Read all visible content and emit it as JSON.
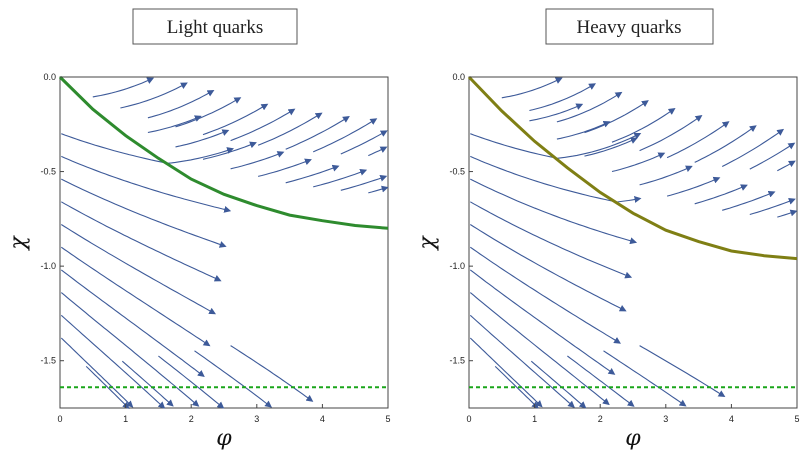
{
  "colors": {
    "stream": "#3d5a99",
    "light_curve": "#2e8b2e",
    "heavy_curve": "#7f7f14",
    "dashed": "#1aa51a"
  },
  "chart_data": [
    {
      "type": "streamplot",
      "title": "Light quarks",
      "xlabel": "φ",
      "ylabel": "χ",
      "xlim": [
        0,
        5
      ],
      "ylim": [
        -1.75,
        0
      ],
      "xticks": [
        "0",
        "1",
        "2",
        "3",
        "4",
        "5"
      ],
      "yticks": [
        "0.0",
        "-0.5",
        "-1.0",
        "-1.5"
      ],
      "dashed_line_y": -1.64,
      "curve": {
        "x": [
          0,
          0.5,
          1,
          1.5,
          2,
          2.5,
          3,
          3.5,
          4,
          4.5,
          5
        ],
        "y": [
          0,
          -0.17,
          -0.31,
          -0.43,
          -0.54,
          -0.62,
          -0.68,
          -0.73,
          -0.76,
          -0.785,
          -0.8
        ]
      }
    },
    {
      "type": "streamplot",
      "title": "Heavy quarks",
      "xlabel": "φ",
      "ylabel": "χ",
      "xlim": [
        0,
        5
      ],
      "ylim": [
        -1.75,
        0
      ],
      "xticks": [
        "0",
        "1",
        "2",
        "3",
        "4",
        "5"
      ],
      "yticks": [
        "0.0",
        "-0.5",
        "-1.0",
        "-1.5"
      ],
      "dashed_line_y": -1.64,
      "curve": {
        "x": [
          0,
          0.5,
          1,
          1.5,
          2,
          2.5,
          3,
          3.5,
          4,
          4.5,
          5
        ],
        "y": [
          0,
          -0.18,
          -0.34,
          -0.48,
          -0.61,
          -0.72,
          -0.81,
          -0.87,
          -0.92,
          -0.945,
          -0.96
        ]
      }
    }
  ]
}
